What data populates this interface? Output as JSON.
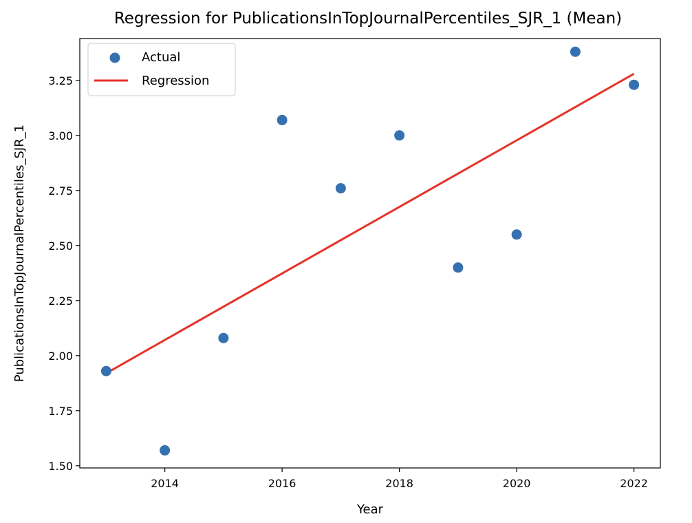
{
  "chart_data": {
    "type": "scatter",
    "title": "Regression for PublicationsInTopJournalPercentiles_SJR_1 (Mean)",
    "xlabel": "Year",
    "ylabel": "PublicationsInTopJournalPercentiles_SJR_1",
    "xlim": [
      2012.55,
      2022.45
    ],
    "ylim": [
      1.49,
      3.44
    ],
    "xticks": [
      2014,
      2016,
      2018,
      2020,
      2022
    ],
    "xtick_labels": [
      "2014",
      "2016",
      "2018",
      "2020",
      "2022"
    ],
    "yticks": [
      1.5,
      1.75,
      2.0,
      2.25,
      2.5,
      2.75,
      3.0,
      3.25
    ],
    "ytick_labels": [
      "1.50",
      "1.75",
      "2.00",
      "2.25",
      "2.50",
      "2.75",
      "3.00",
      "3.25"
    ],
    "grid": false,
    "legend_position": "top-left",
    "series": [
      {
        "name": "Actual",
        "kind": "scatter",
        "color": "#3571b0",
        "x": [
          2013,
          2014,
          2015,
          2016,
          2017,
          2018,
          2019,
          2020,
          2021,
          2022
        ],
        "y": [
          1.93,
          1.57,
          2.08,
          3.07,
          2.76,
          3.0,
          2.4,
          2.55,
          3.38,
          3.23
        ]
      },
      {
        "name": "Regression",
        "kind": "line",
        "color": "#e63228",
        "x": [
          2013,
          2022
        ],
        "y": [
          1.92,
          3.28
        ]
      }
    ]
  }
}
